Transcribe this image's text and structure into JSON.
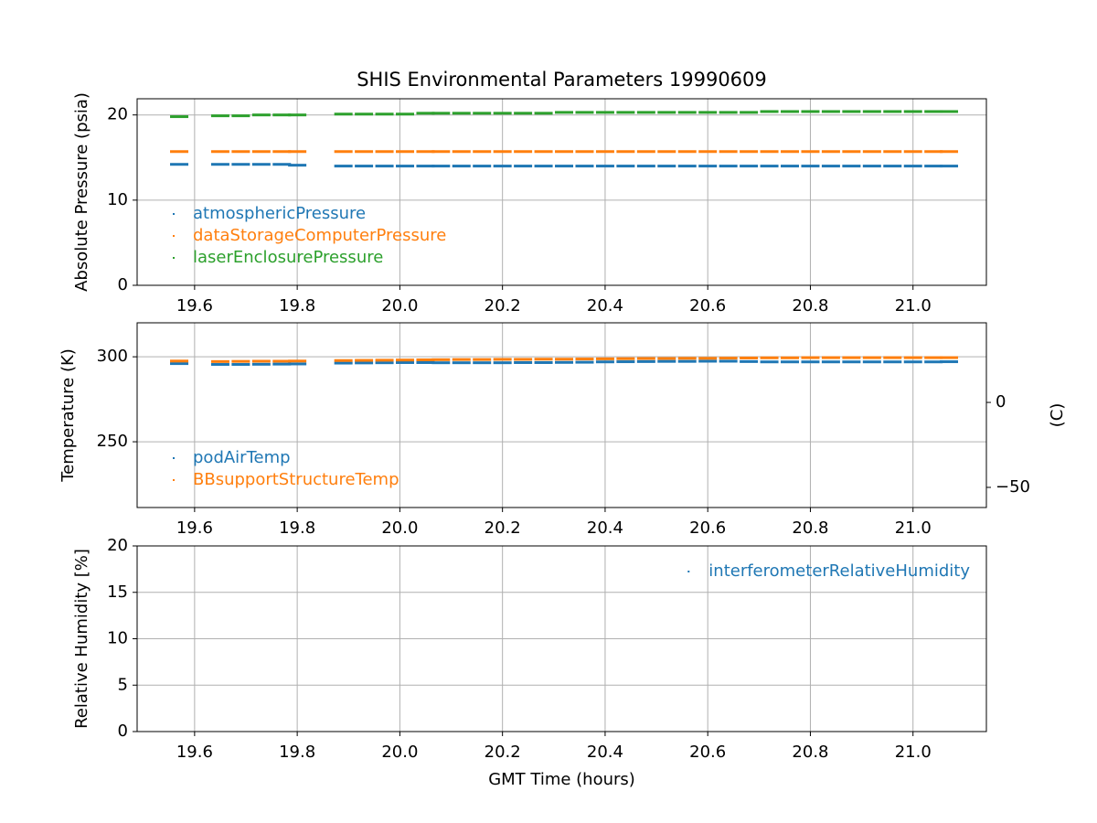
{
  "chart_data": [
    {
      "type": "scatter",
      "title": "SHIS Environmental Parameters 19990609",
      "ylabel": "Absolute Pressure (psia)",
      "x": [
        19.57,
        19.65,
        19.69,
        19.73,
        19.77,
        19.8,
        19.89,
        19.93,
        19.97,
        20.01,
        20.05,
        20.08,
        20.12,
        20.16,
        20.2,
        20.24,
        20.28,
        20.32,
        20.36,
        20.4,
        20.44,
        20.48,
        20.52,
        20.56,
        20.6,
        20.64,
        20.68,
        20.72,
        20.76,
        20.8,
        20.84,
        20.88,
        20.92,
        20.96,
        21.0,
        21.04,
        21.07
      ],
      "series": [
        {
          "name": "atmosphericPressure",
          "color": "#1f77b4",
          "values": [
            14.2,
            14.2,
            14.2,
            14.2,
            14.2,
            14.1,
            14.0,
            14.0,
            14.0,
            14.0,
            14.0,
            14.0,
            14.0,
            14.0,
            14.0,
            14.0,
            14.0,
            14.0,
            14.0,
            14.0,
            14.0,
            14.0,
            14.0,
            14.0,
            14.0,
            14.0,
            14.0,
            14.0,
            14.0,
            14.0,
            14.0,
            14.0,
            14.0,
            14.0,
            14.0,
            14.0,
            14.0
          ]
        },
        {
          "name": "dataStorageComputerPressure",
          "color": "#ff7f0e",
          "values": [
            15.7,
            15.7,
            15.7,
            15.7,
            15.7,
            15.7,
            15.7,
            15.7,
            15.7,
            15.7,
            15.7,
            15.7,
            15.7,
            15.7,
            15.7,
            15.7,
            15.7,
            15.7,
            15.7,
            15.7,
            15.7,
            15.7,
            15.7,
            15.7,
            15.7,
            15.7,
            15.7,
            15.7,
            15.7,
            15.7,
            15.7,
            15.7,
            15.7,
            15.7,
            15.7,
            15.7,
            15.7
          ]
        },
        {
          "name": "laserEnclosurePressure",
          "color": "#2ca02c",
          "values": [
            19.8,
            19.9,
            19.9,
            20.0,
            20.0,
            20.0,
            20.1,
            20.1,
            20.1,
            20.1,
            20.2,
            20.2,
            20.2,
            20.2,
            20.2,
            20.2,
            20.2,
            20.3,
            20.3,
            20.3,
            20.3,
            20.3,
            20.3,
            20.3,
            20.3,
            20.3,
            20.3,
            20.4,
            20.4,
            20.4,
            20.4,
            20.4,
            20.4,
            20.4,
            20.4,
            20.4,
            20.4
          ]
        }
      ],
      "xlim": [
        19.488,
        21.143
      ],
      "xticks": [
        19.6,
        19.8,
        {
          "value": 20,
          "label": "20.0"
        },
        20.2,
        20.4,
        20.6,
        20.8,
        {
          "value": 21,
          "label": "21.0"
        }
      ],
      "ylim": [
        0,
        21.9
      ],
      "yticks": [
        0,
        10,
        20
      ],
      "grid": true,
      "legend": "lower left"
    },
    {
      "type": "scatter",
      "ylabel": "Temperature (K)",
      "y2label": "(C)",
      "x": [
        19.57,
        19.65,
        19.69,
        19.73,
        19.77,
        19.8,
        19.89,
        19.93,
        19.97,
        20.01,
        20.05,
        20.08,
        20.12,
        20.16,
        20.2,
        20.24,
        20.28,
        20.32,
        20.36,
        20.4,
        20.44,
        20.48,
        20.52,
        20.56,
        20.6,
        20.64,
        20.68,
        20.72,
        20.76,
        20.8,
        20.84,
        20.88,
        20.92,
        20.96,
        21.0,
        21.04,
        21.07
      ],
      "series": [
        {
          "name": "podAirTemp",
          "color": "#1f77b4",
          "values": [
            296.0,
            295.5,
            295.5,
            295.6,
            295.7,
            295.8,
            296.3,
            296.4,
            296.5,
            296.6,
            296.6,
            296.5,
            296.5,
            296.5,
            296.5,
            296.6,
            296.6,
            296.7,
            296.8,
            297.0,
            297.1,
            297.2,
            297.3,
            297.3,
            297.4,
            297.4,
            297.2,
            297.0,
            297.0,
            297.0,
            297.0,
            297.0,
            297.0,
            297.0,
            297.0,
            297.0,
            297.1
          ]
        },
        {
          "name": "BBsupportStructureTemp",
          "color": "#ff7f0e",
          "values": [
            297.5,
            297.2,
            297.3,
            297.4,
            297.4,
            297.5,
            297.8,
            297.9,
            298.0,
            298.1,
            298.2,
            298.3,
            298.4,
            298.4,
            298.5,
            298.5,
            298.6,
            298.6,
            298.7,
            298.8,
            298.9,
            299.0,
            299.0,
            299.1,
            299.1,
            299.2,
            299.3,
            299.4,
            299.4,
            299.5,
            299.5,
            299.5,
            299.5,
            299.5,
            299.5,
            299.5,
            299.5
          ]
        }
      ],
      "xlim": [
        19.488,
        21.143
      ],
      "xticks": [
        19.6,
        19.8,
        {
          "value": 20,
          "label": "20.0"
        },
        20.2,
        20.4,
        20.6,
        20.8,
        {
          "value": 21,
          "label": "21.0"
        }
      ],
      "ylim": [
        211.3,
        320.0
      ],
      "yticks": [
        250,
        300
      ],
      "y2lim": [
        -61.85,
        46.85
      ],
      "y2ticks": [
        {
          "value": -50,
          "label": "−50"
        },
        0
      ],
      "grid": true,
      "legend": "lower left"
    },
    {
      "type": "scatter",
      "ylabel": "Relative Humidity [%]",
      "xlabel": "GMT Time (hours)",
      "x": [],
      "series": [
        {
          "name": "interferometerRelativeHumidity",
          "color": "#1f77b4",
          "values": []
        }
      ],
      "xlim": [
        19.488,
        21.143
      ],
      "xticks": [
        19.6,
        19.8,
        {
          "value": 20,
          "label": "20.0"
        },
        20.2,
        20.4,
        20.6,
        20.8,
        {
          "value": 21,
          "label": "21.0"
        }
      ],
      "ylim": [
        0,
        20
      ],
      "yticks": [
        0,
        5,
        10,
        15,
        20
      ],
      "grid": true,
      "legend": "upper right"
    }
  ]
}
